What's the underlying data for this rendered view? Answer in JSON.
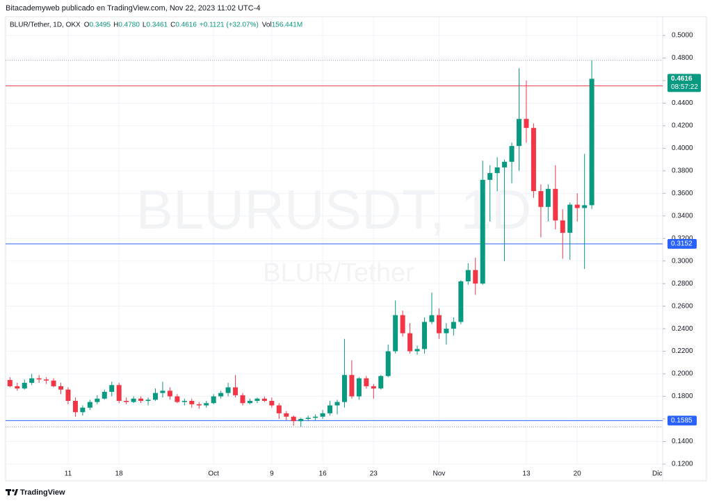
{
  "header": "Bitacademyweb publicado en TradingView.com, Nov 22, 2023 11:02 UTC-4",
  "footer": "TradingView",
  "chart_data": {
    "type": "candlestick",
    "symbol": "BLUR/Tether, 1D, OKX",
    "legend": [
      {
        "label": "O",
        "value": "0.3495"
      },
      {
        "label": "H",
        "value": "0.4780"
      },
      {
        "label": "L",
        "value": "0.3461"
      },
      {
        "label": "C",
        "value": "0.4616"
      }
    ],
    "change": "+0.1121 (+32.07%)",
    "volume_label": "Vol",
    "volume": "156.441M",
    "watermark": "BLURUSDT, 1D",
    "watermark_subtitle": "BLUR/Tether",
    "categories": [
      null,
      null,
      null,
      null,
      null,
      null,
      null,
      null,
      "11",
      null,
      null,
      null,
      null,
      null,
      null,
      "18",
      null,
      null,
      null,
      null,
      null,
      null,
      null,
      null,
      null,
      null,
      null,
      null,
      "Oct",
      null,
      null,
      null,
      null,
      null,
      null,
      null,
      "9",
      null,
      null,
      null,
      null,
      null,
      null,
      "16",
      null,
      null,
      null,
      null,
      null,
      null,
      "23",
      null,
      null,
      null,
      null,
      null,
      null,
      null,
      null,
      "Nov",
      null,
      null,
      null,
      null,
      null,
      null,
      null,
      null,
      null,
      null,
      null,
      "13",
      null,
      null,
      null,
      null,
      null,
      null,
      "20",
      null,
      null,
      null,
      null,
      null,
      null,
      null,
      null,
      null,
      null,
      "Dic"
    ],
    "open": [
      0.1945,
      0.189,
      0.187,
      0.192,
      0.196,
      0.195,
      0.194,
      0.189,
      0.186,
      0.176,
      0.166,
      0.17,
      0.175,
      0.178,
      0.184,
      0.19,
      0.176,
      0.175,
      0.178,
      0.176,
      0.177,
      0.183,
      0.185,
      0.18,
      0.175,
      0.176,
      0.173,
      0.172,
      0.174,
      0.18,
      0.183,
      0.188,
      0.181,
      0.174,
      0.176,
      0.178,
      0.176,
      0.172,
      0.165,
      0.162,
      0.158,
      0.16,
      0.161,
      0.162,
      0.165,
      0.172,
      0.175,
      0.199,
      0.18,
      0.196,
      0.189,
      0.187,
      0.198,
      0.22,
      0.252,
      0.236,
      0.22,
      0.222,
      0.246,
      0.252,
      0.236,
      0.24,
      0.246,
      0.282,
      0.292,
      0.28,
      0.372,
      0.378,
      0.383,
      0.388,
      0.402,
      0.426,
      0.418,
      0.362,
      0.348,
      0.364,
      0.336,
      0.325,
      0.35,
      0.347,
      0.3495,
      null,
      null,
      null,
      null,
      null,
      null,
      null,
      null,
      null
    ],
    "high": [
      0.197,
      0.192,
      0.195,
      0.2,
      0.199,
      0.197,
      0.196,
      0.192,
      0.188,
      0.179,
      0.172,
      0.177,
      0.181,
      0.186,
      0.193,
      0.192,
      0.179,
      0.18,
      0.18,
      0.179,
      0.187,
      0.193,
      0.188,
      0.182,
      0.178,
      0.178,
      0.175,
      0.176,
      0.182,
      0.185,
      0.192,
      0.199,
      0.183,
      0.178,
      0.179,
      0.18,
      0.179,
      0.174,
      0.167,
      0.163,
      0.161,
      0.163,
      0.164,
      0.168,
      0.176,
      0.177,
      0.231,
      0.212,
      0.197,
      0.198,
      0.191,
      0.199,
      0.226,
      0.265,
      0.256,
      0.245,
      0.225,
      0.25,
      0.272,
      0.258,
      0.245,
      0.25,
      0.283,
      0.298,
      0.303,
      0.389,
      0.385,
      0.392,
      0.39,
      0.405,
      0.471,
      0.46,
      0.422,
      0.368,
      0.368,
      0.385,
      0.346,
      0.352,
      0.36,
      0.395,
      0.478,
      null,
      null,
      null,
      null,
      null,
      null,
      null,
      null,
      null
    ],
    "low": [
      0.188,
      0.185,
      0.186,
      0.19,
      0.192,
      0.191,
      0.188,
      0.182,
      0.173,
      0.162,
      0.163,
      0.168,
      0.173,
      0.177,
      0.18,
      0.174,
      0.173,
      0.174,
      0.174,
      0.172,
      0.176,
      0.179,
      0.177,
      0.174,
      0.172,
      0.17,
      0.169,
      0.17,
      0.173,
      0.178,
      0.18,
      0.179,
      0.172,
      0.173,
      0.174,
      0.175,
      0.17,
      0.16,
      0.159,
      0.154,
      0.153,
      0.158,
      0.159,
      0.16,
      0.163,
      0.164,
      0.17,
      0.178,
      0.177,
      0.187,
      0.178,
      0.186,
      0.197,
      0.218,
      0.233,
      0.218,
      0.217,
      0.218,
      0.244,
      0.231,
      0.226,
      0.234,
      0.244,
      0.279,
      0.27,
      0.279,
      0.335,
      0.362,
      0.3,
      0.369,
      0.38,
      0.405,
      0.356,
      0.321,
      0.335,
      0.328,
      0.302,
      0.301,
      0.335,
      0.293,
      0.3461,
      null,
      null,
      null,
      null,
      null,
      null,
      null,
      null,
      null
    ],
    "close": [
      0.189,
      0.187,
      0.192,
      0.196,
      0.195,
      0.194,
      0.189,
      0.186,
      0.176,
      0.166,
      0.17,
      0.175,
      0.178,
      0.184,
      0.19,
      0.176,
      0.175,
      0.178,
      0.176,
      0.177,
      0.183,
      0.185,
      0.18,
      0.175,
      0.176,
      0.173,
      0.172,
      0.174,
      0.18,
      0.183,
      0.188,
      0.181,
      0.174,
      0.176,
      0.178,
      0.176,
      0.172,
      0.165,
      0.162,
      0.158,
      0.16,
      0.161,
      0.162,
      0.165,
      0.172,
      0.175,
      0.199,
      0.18,
      0.196,
      0.189,
      0.187,
      0.198,
      0.22,
      0.252,
      0.236,
      0.22,
      0.222,
      0.246,
      0.252,
      0.236,
      0.24,
      0.246,
      0.282,
      0.292,
      0.28,
      0.372,
      0.378,
      0.383,
      0.388,
      0.402,
      0.426,
      0.418,
      0.362,
      0.348,
      0.364,
      0.336,
      0.325,
      0.35,
      0.347,
      0.3495,
      0.4616,
      null,
      null,
      null,
      null,
      null,
      null,
      null,
      null,
      null
    ],
    "up_color": "#089981",
    "down_color": "#f23645",
    "ylim": [
      0.1064,
      0.5142
    ],
    "yticks": [
      {
        "value": 0.12,
        "label": "0.1200"
      },
      {
        "value": 0.14,
        "label": "0.1400"
      },
      {
        "value": 0.16,
        "label": "0.1600"
      },
      {
        "value": 0.18,
        "label": "0.1800"
      },
      {
        "value": 0.2,
        "label": "0.2000"
      },
      {
        "value": 0.22,
        "label": "0.2200"
      },
      {
        "value": 0.24,
        "label": "0.2400"
      },
      {
        "value": 0.26,
        "label": "0.2600"
      },
      {
        "value": 0.28,
        "label": "0.2800"
      },
      {
        "value": 0.3,
        "label": "0.3000"
      },
      {
        "value": 0.32,
        "label": "0.3200"
      },
      {
        "value": 0.34,
        "label": "0.3400"
      },
      {
        "value": 0.36,
        "label": "0.3600"
      },
      {
        "value": 0.38,
        "label": "0.3800"
      },
      {
        "value": 0.4,
        "label": "0.4000"
      },
      {
        "value": 0.42,
        "label": "0.4200"
      },
      {
        "value": 0.44,
        "label": "0.4400"
      },
      {
        "value": 0.46,
        "label": "0.4600"
      },
      {
        "value": 0.48,
        "label": "0.4800"
      },
      {
        "value": 0.5,
        "label": "0.5000"
      }
    ],
    "grid": true,
    "last_price": {
      "value": 0.4616,
      "countdown": "08:57:22",
      "color": "#089981"
    },
    "price_lines": [
      {
        "value": 0.4553,
        "color": "#f23645"
      },
      {
        "value": 0.3152,
        "color": "#2962ff"
      },
      {
        "value": 0.1585,
        "color": "#2962ff"
      }
    ]
  }
}
